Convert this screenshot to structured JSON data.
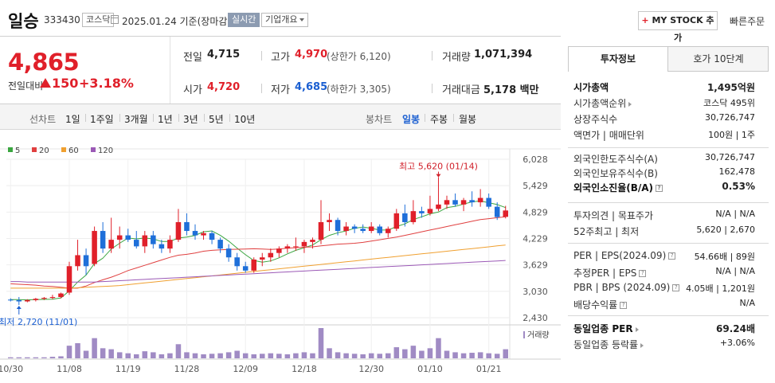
{
  "header": {
    "name": "일승",
    "code": "333430",
    "market": "코스닥",
    "date_text": "2025.01.24 기준(장마감)",
    "live": "실시간",
    "profile": "기업개요",
    "mystock_plus": "+",
    "mystock": "MY STOCK 추가",
    "quick_order": "빠른주문"
  },
  "quote": {
    "price": "4,865",
    "change_label": "전일대비",
    "change": "150",
    "change_rate": "+3.18%",
    "prev_label": "전일",
    "prev": "4,715",
    "high_label": "고가",
    "high": "4,970",
    "upper_limit": "(상한가 6,120)",
    "volume_label": "거래량",
    "volume": "1,071,394",
    "open_label": "시가",
    "open": "4,720",
    "low_label": "저가",
    "low": "4,685",
    "lower_limit": "(하한가 3,305)",
    "amount_label": "거래대금",
    "amount": "5,178 백만"
  },
  "periods": {
    "line_label": "선차트",
    "line_items": [
      "1일",
      "1주일",
      "3개월",
      "1년",
      "3년",
      "5년",
      "10년"
    ],
    "candle_label": "봉차트",
    "candle_items": [
      "일봉",
      "주봉",
      "월봉"
    ],
    "candle_active": "일봉"
  },
  "chart_data": {
    "type": "candlestick",
    "legend": [
      {
        "name": "5",
        "color": "#3aa640"
      },
      {
        "name": "20",
        "color": "#e04040"
      },
      {
        "name": "60",
        "color": "#f0a030"
      },
      {
        "name": "120",
        "color": "#9b59b6"
      }
    ],
    "y_ticks": [
      "6,028",
      "5,429",
      "4,829",
      "4,229",
      "3,629",
      "3,030",
      "2,430"
    ],
    "y_tick_values": [
      6028,
      5429,
      4829,
      4229,
      3629,
      3030,
      2430
    ],
    "x_labels": [
      "10/30",
      "11/08",
      "11/19",
      "11/28",
      "12/09",
      "12/18",
      "12/30",
      "01/10",
      "01/21"
    ],
    "x_label_indices": [
      0,
      7,
      14,
      21,
      28,
      35,
      43,
      50,
      57
    ],
    "high_annotation": "최고 5,620 (01/14)",
    "low_annotation": "최저 2,720 (11/01)",
    "volume_label": "거래량",
    "up_color": "#e0202a",
    "down_color": "#1e6fd9",
    "candles": [
      [
        2840,
        2870,
        2800,
        2830
      ],
      [
        2830,
        2900,
        2720,
        2800
      ],
      [
        2800,
        2850,
        2780,
        2830
      ],
      [
        2830,
        2880,
        2800,
        2860
      ],
      [
        2860,
        2900,
        2830,
        2880
      ],
      [
        2880,
        2950,
        2850,
        2900
      ],
      [
        2900,
        3000,
        2870,
        2980
      ],
      [
        3000,
        3700,
        2950,
        3600
      ],
      [
        3600,
        4200,
        3500,
        3850
      ],
      [
        3850,
        4000,
        3400,
        3600
      ],
      [
        3650,
        4500,
        3600,
        4400
      ],
      [
        4400,
        4600,
        3900,
        4000
      ],
      [
        4000,
        4700,
        3900,
        4200
      ],
      [
        4200,
        4500,
        4000,
        4300
      ],
      [
        4300,
        4450,
        4150,
        4200
      ],
      [
        4200,
        4400,
        4000,
        4050
      ],
      [
        4050,
        4400,
        3900,
        4300
      ],
      [
        4300,
        4400,
        4000,
        4100
      ],
      [
        4100,
        4200,
        3900,
        4000
      ],
      [
        4000,
        4300,
        3900,
        4200
      ],
      [
        4200,
        4900,
        4150,
        4600
      ],
      [
        4600,
        4800,
        4300,
        4400
      ],
      [
        4400,
        4550,
        4200,
        4300
      ],
      [
        4300,
        4400,
        4200,
        4350
      ],
      [
        4350,
        4400,
        4100,
        4200
      ],
      [
        4200,
        4250,
        3900,
        4000
      ],
      [
        4000,
        4100,
        3700,
        3800
      ],
      [
        3800,
        3900,
        3500,
        3600
      ],
      [
        3600,
        3700,
        3450,
        3500
      ],
      [
        3500,
        3800,
        3450,
        3750
      ],
      [
        3750,
        3900,
        3600,
        3800
      ],
      [
        3800,
        4000,
        3700,
        3900
      ],
      [
        3900,
        4050,
        3800,
        4000
      ],
      [
        4000,
        4100,
        3900,
        4050
      ],
      [
        4050,
        4250,
        3950,
        4050
      ],
      [
        4050,
        4200,
        3900,
        4150
      ],
      [
        4150,
        4250,
        4000,
        4200
      ],
      [
        4200,
        5100,
        4100,
        4600
      ],
      [
        4600,
        4800,
        4400,
        4650
      ],
      [
        4650,
        4700,
        4300,
        4400
      ],
      [
        4400,
        4600,
        4300,
        4500
      ],
      [
        4500,
        4550,
        4350,
        4450
      ],
      [
        4450,
        4550,
        4350,
        4400
      ],
      [
        4400,
        4600,
        4350,
        4500
      ],
      [
        4500,
        4550,
        4300,
        4350
      ],
      [
        4350,
        4500,
        4250,
        4450
      ],
      [
        4450,
        4900,
        4400,
        4800
      ],
      [
        4800,
        5000,
        4500,
        4600
      ],
      [
        4600,
        5100,
        4550,
        4850
      ],
      [
        4850,
        4950,
        4700,
        4800
      ],
      [
        4800,
        5200,
        4750,
        4900
      ],
      [
        4900,
        5620,
        4850,
        5000
      ],
      [
        5000,
        5200,
        4900,
        5100
      ],
      [
        5100,
        5250,
        4950,
        5000
      ],
      [
        5000,
        5150,
        4850,
        5100
      ],
      [
        5100,
        5300,
        4950,
        5050
      ],
      [
        5050,
        5350,
        4950,
        5150
      ],
      [
        5150,
        5250,
        4900,
        4950
      ],
      [
        4950,
        5050,
        4650,
        4715
      ],
      [
        4720,
        4970,
        4685,
        4865
      ]
    ],
    "volumes": [
      2,
      2,
      2,
      2,
      2,
      3,
      4,
      25,
      30,
      15,
      40,
      20,
      18,
      12,
      10,
      8,
      14,
      12,
      8,
      10,
      28,
      12,
      10,
      8,
      9,
      10,
      12,
      15,
      10,
      8,
      9,
      10,
      9,
      8,
      10,
      12,
      10,
      60,
      20,
      12,
      10,
      9,
      8,
      10,
      9,
      10,
      22,
      18,
      25,
      15,
      20,
      40,
      15,
      12,
      10,
      11,
      12,
      10,
      9,
      18
    ],
    "ma": {
      "5": [
        2840,
        2840,
        2835,
        2840,
        2845,
        2850,
        2880,
        3040,
        3240,
        3400,
        3660,
        3780,
        3990,
        4120,
        4240,
        4220,
        4240,
        4220,
        4160,
        4160,
        4240,
        4260,
        4300,
        4380,
        4400,
        4300,
        4170,
        4010,
        3860,
        3730,
        3690,
        3720,
        3790,
        3880,
        3960,
        4020,
        4080,
        4200,
        4300,
        4360,
        4400,
        4460,
        4490,
        4460,
        4420,
        4420,
        4500,
        4560,
        4660,
        4720,
        4790,
        4830,
        4930,
        4960,
        5010,
        5060,
        5080,
        5040,
        5000,
        4930
      ],
      "20": [
        3200,
        3190,
        3180,
        3170,
        3150,
        3140,
        3120,
        3100,
        3100,
        3150,
        3230,
        3290,
        3350,
        3420,
        3500,
        3560,
        3620,
        3680,
        3740,
        3800,
        3850,
        3870,
        3900,
        3940,
        3960,
        3970,
        3980,
        3985,
        3990,
        3995,
        3990,
        3980,
        3990,
        4010,
        4020,
        4030,
        4040,
        4060,
        4080,
        4100,
        4110,
        4120,
        4140,
        4170,
        4200,
        4230,
        4260,
        4300,
        4340,
        4380,
        4420,
        4460,
        4500,
        4540,
        4580,
        4620,
        4660,
        4680,
        4700,
        4720
      ],
      "60": [
        3100,
        3100,
        3100,
        3100,
        3100,
        3100,
        3100,
        3100,
        3110,
        3120,
        3130,
        3140,
        3150,
        3160,
        3180,
        3200,
        3220,
        3240,
        3260,
        3280,
        3300,
        3320,
        3340,
        3360,
        3380,
        3400,
        3420,
        3440,
        3460,
        3480,
        3500,
        3520,
        3540,
        3560,
        3580,
        3600,
        3620,
        3640,
        3660,
        3680,
        3700,
        3720,
        3740,
        3760,
        3780,
        3800,
        3820,
        3840,
        3860,
        3880,
        3900,
        3920,
        3940,
        3960,
        3980,
        4000,
        4020,
        4040,
        4060,
        4080
      ],
      "120": [
        3250,
        3250,
        3240,
        3240,
        3240,
        3240,
        3240,
        3240,
        3240,
        3240,
        3240,
        3250,
        3260,
        3270,
        3280,
        3290,
        3300,
        3310,
        3320,
        3330,
        3340,
        3350,
        3360,
        3370,
        3380,
        3390,
        3400,
        3410,
        3420,
        3430,
        3440,
        3450,
        3460,
        3470,
        3480,
        3490,
        3500,
        3510,
        3520,
        3530,
        3540,
        3550,
        3560,
        3570,
        3580,
        3590,
        3600,
        3610,
        3620,
        3630,
        3640,
        3650,
        3660,
        3670,
        3680,
        3690,
        3700,
        3710,
        3720,
        3730
      ]
    }
  },
  "right_panel": {
    "tab_info": "투자정보",
    "tab_ask": "호가 10단계",
    "rows1": [
      {
        "label": "시가총액",
        "value": "1,495억원",
        "bold": true
      },
      {
        "label": "시가총액순위",
        "value": "코스닥 495위",
        "arrow": true
      },
      {
        "label": "상장주식수",
        "value": "30,726,747"
      },
      {
        "label": "액면가 | 매매단위",
        "value": "100원 | 1주"
      }
    ],
    "rows2": [
      {
        "label": "외국인한도주식수(A)",
        "value": "30,726,747"
      },
      {
        "label": "외국인보유주식수(B)",
        "value": "162,478"
      },
      {
        "label": "외국인소진율(B/A)",
        "value": "0.53%",
        "bold": true,
        "q": true
      }
    ],
    "rows3": [
      {
        "label": "투자의견 | 목표주가",
        "value": "N/A | N/A"
      },
      {
        "label": "52주최고 | 최저",
        "value": "5,620 | 2,670"
      }
    ],
    "rows4": [
      {
        "label": "PER | EPS(2024.09)",
        "value": "54.66배 | 89원",
        "q": true
      },
      {
        "label": "추정PER | EPS",
        "value": "N/A | N/A",
        "q": true
      },
      {
        "label": "PBR | BPS (2024.09)",
        "value": "4.05배 | 1,201원",
        "q": true
      },
      {
        "label": "배당수익률",
        "value": "N/A",
        "q": true
      }
    ],
    "rows5": [
      {
        "label": "동일업종 PER",
        "value": "69.24배",
        "bold": true,
        "arrow": true
      },
      {
        "label": "동일업종 등락률",
        "value": "+3.06%",
        "red": true,
        "arrow": true
      }
    ]
  }
}
